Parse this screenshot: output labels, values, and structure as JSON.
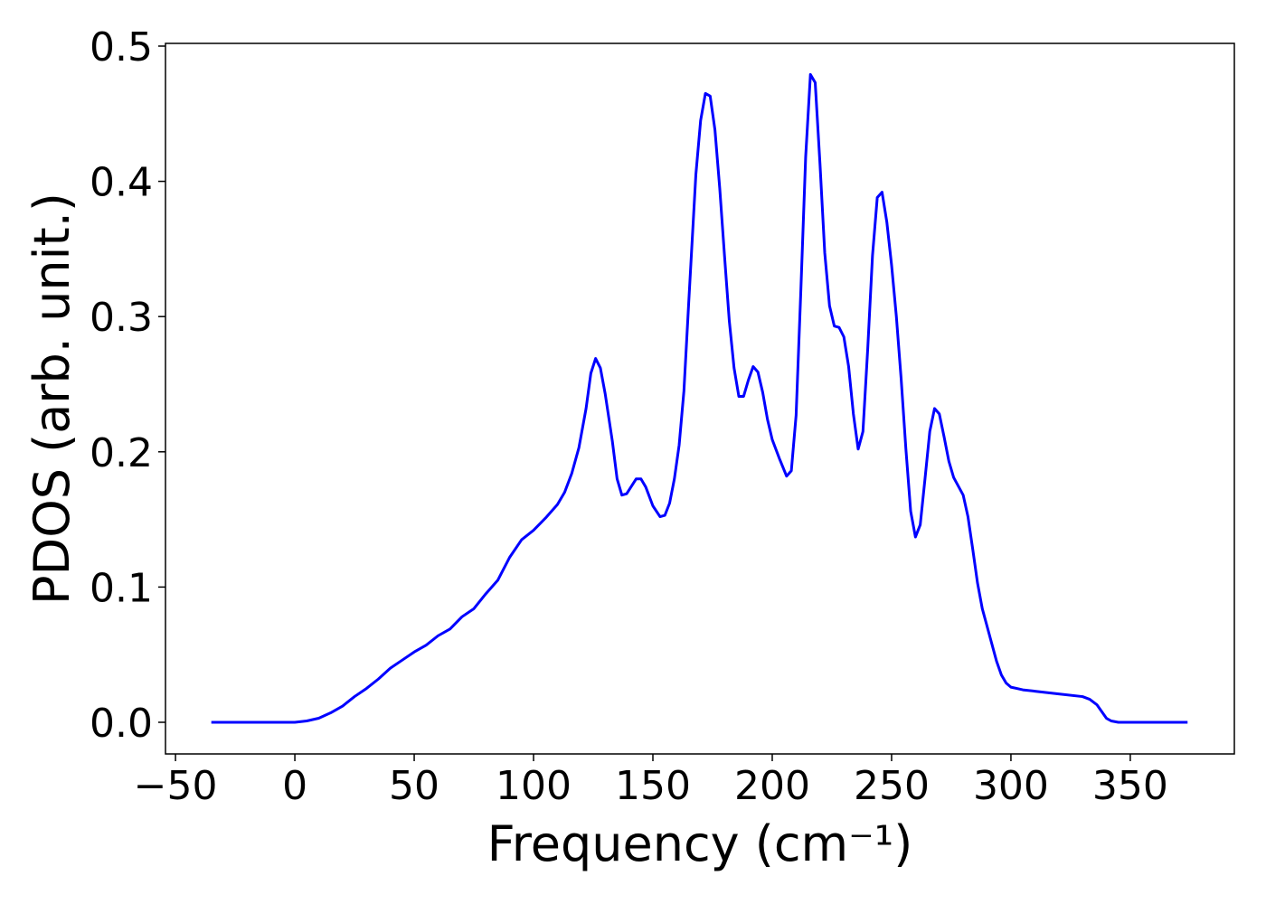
{
  "chart_data": {
    "type": "line",
    "x_label": "Frequency (cm⁻¹)",
    "y_label": "PDOS (arb. unit.)",
    "color": "#0000ff",
    "x": [
      -35,
      0,
      5,
      10,
      15,
      20,
      25,
      30,
      35,
      40,
      45,
      50,
      55,
      60,
      65,
      70,
      75,
      80,
      85,
      90,
      95,
      100,
      105,
      110,
      113,
      116,
      119,
      122,
      124,
      126,
      128,
      130,
      133,
      135,
      137,
      139,
      143,
      145,
      147,
      150,
      153,
      155,
      157,
      159,
      161,
      163,
      165,
      168,
      170,
      172,
      174,
      176,
      178,
      180,
      182,
      184,
      186,
      188,
      190,
      192,
      194,
      196,
      198,
      200,
      203,
      206,
      208,
      210,
      212,
      214,
      216,
      218,
      220,
      222,
      224,
      226,
      228,
      230,
      232,
      234,
      236,
      238,
      240,
      242,
      244,
      246,
      248,
      250,
      252,
      254,
      256,
      258,
      260,
      262,
      264,
      266,
      268,
      270,
      272,
      274,
      276,
      280,
      282,
      284,
      286,
      288,
      290,
      292,
      294,
      296,
      298,
      300,
      305,
      310,
      320,
      330,
      333,
      336,
      338,
      340,
      342,
      345,
      374
    ],
    "values": [
      0,
      0,
      0.001,
      0.003,
      0.007,
      0.012,
      0.019,
      0.025,
      0.032,
      0.04,
      0.046,
      0.052,
      0.057,
      0.064,
      0.069,
      0.078,
      0.084,
      0.095,
      0.105,
      0.122,
      0.135,
      0.142,
      0.151,
      0.161,
      0.17,
      0.184,
      0.203,
      0.232,
      0.258,
      0.269,
      0.262,
      0.243,
      0.208,
      0.18,
      0.168,
      0.169,
      0.18,
      0.18,
      0.174,
      0.16,
      0.152,
      0.153,
      0.162,
      0.18,
      0.205,
      0.245,
      0.31,
      0.405,
      0.445,
      0.465,
      0.463,
      0.438,
      0.395,
      0.345,
      0.297,
      0.262,
      0.241,
      0.241,
      0.253,
      0.263,
      0.259,
      0.244,
      0.224,
      0.209,
      0.195,
      0.182,
      0.186,
      0.227,
      0.32,
      0.418,
      0.479,
      0.473,
      0.413,
      0.347,
      0.308,
      0.293,
      0.292,
      0.285,
      0.263,
      0.228,
      0.202,
      0.215,
      0.276,
      0.345,
      0.388,
      0.392,
      0.37,
      0.338,
      0.3,
      0.254,
      0.202,
      0.156,
      0.137,
      0.146,
      0.18,
      0.215,
      0.232,
      0.228,
      0.211,
      0.193,
      0.181,
      0.168,
      0.152,
      0.128,
      0.103,
      0.084,
      0.071,
      0.058,
      0.045,
      0.035,
      0.029,
      0.026,
      0.024,
      0.023,
      0.021,
      0.019,
      0.017,
      0.013,
      0.008,
      0.003,
      0.001,
      0,
      0
    ],
    "xlim": [
      -54.2,
      393.6
    ],
    "ylim": [
      -0.0234,
      0.502
    ],
    "xticks": [
      {
        "value": -50,
        "label": "−50"
      },
      0,
      50,
      100,
      150,
      200,
      250,
      300,
      350
    ],
    "yticks": [
      {
        "value": 0,
        "label": "0.0"
      },
      0.1,
      0.2,
      0.3,
      0.4,
      0.5
    ],
    "grid": false
  }
}
